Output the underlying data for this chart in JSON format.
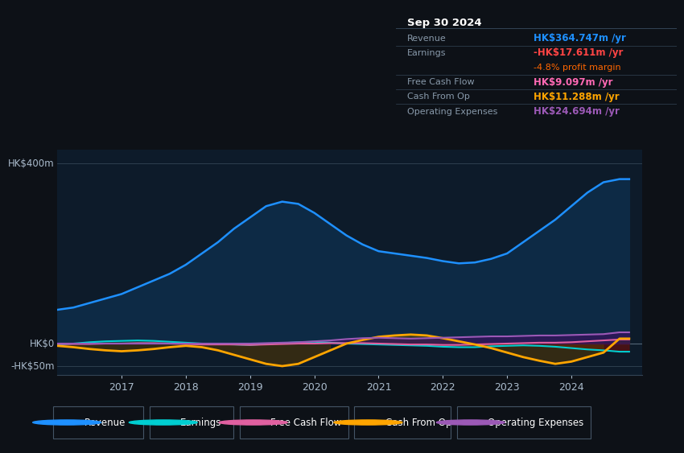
{
  "bg_color": "#0d1117",
  "plot_bg_color": "#0d1b2a",
  "title_box": {
    "date": "Sep 30 2024",
    "rows": [
      {
        "label": "Revenue",
        "value": "HK$364.747m",
        "value_color": "#1e90ff",
        "suffix": " /yr",
        "extra": null,
        "extra_color": null
      },
      {
        "label": "Earnings",
        "value": "-HK$17.611m",
        "value_color": "#ff4444",
        "suffix": " /yr",
        "extra": "-4.8% profit margin",
        "extra_color": "#ff6600"
      },
      {
        "label": "Free Cash Flow",
        "value": "HK$9.097m",
        "value_color": "#ff69b4",
        "suffix": " /yr",
        "extra": null,
        "extra_color": null
      },
      {
        "label": "Cash From Op",
        "value": "HK$11.288m",
        "value_color": "#ffa500",
        "suffix": " /yr",
        "extra": null,
        "extra_color": null
      },
      {
        "label": "Operating Expenses",
        "value": "HK$24.694m",
        "value_color": "#9b59b6",
        "suffix": " /yr",
        "extra": null,
        "extra_color": null
      }
    ]
  },
  "ylabel_top": "HK$400m",
  "ylabel_zero": "HK$0",
  "ylabel_neg": "-HK$50m",
  "x_ticks": [
    "2017",
    "2018",
    "2019",
    "2020",
    "2021",
    "2022",
    "2023",
    "2024"
  ],
  "legend": [
    {
      "label": "Revenue",
      "color": "#1e90ff"
    },
    {
      "label": "Earnings",
      "color": "#00ced1"
    },
    {
      "label": "Free Cash Flow",
      "color": "#e060a0"
    },
    {
      "label": "Cash From Op",
      "color": "#ffa500"
    },
    {
      "label": "Operating Expenses",
      "color": "#9b59b6"
    }
  ],
  "ylim": [
    -70,
    430
  ],
  "xlim": [
    2016.0,
    2025.1
  ],
  "revenue_x": [
    2016.0,
    2016.25,
    2016.5,
    2016.75,
    2017.0,
    2017.25,
    2017.5,
    2017.75,
    2018.0,
    2018.25,
    2018.5,
    2018.75,
    2019.0,
    2019.25,
    2019.5,
    2019.75,
    2020.0,
    2020.25,
    2020.5,
    2020.75,
    2021.0,
    2021.25,
    2021.5,
    2021.75,
    2022.0,
    2022.25,
    2022.5,
    2022.75,
    2023.0,
    2023.25,
    2023.5,
    2023.75,
    2024.0,
    2024.25,
    2024.5,
    2024.75,
    2024.9
  ],
  "revenue_y": [
    75,
    80,
    90,
    100,
    110,
    125,
    140,
    155,
    175,
    200,
    225,
    255,
    280,
    305,
    315,
    310,
    290,
    265,
    240,
    220,
    205,
    200,
    195,
    190,
    183,
    178,
    180,
    188,
    200,
    225,
    250,
    275,
    305,
    335,
    358,
    365,
    365
  ],
  "earnings_x": [
    2016.0,
    2016.25,
    2016.5,
    2016.75,
    2017.0,
    2017.25,
    2017.5,
    2017.75,
    2018.0,
    2018.25,
    2018.5,
    2018.75,
    2019.0,
    2019.25,
    2019.5,
    2019.75,
    2020.0,
    2020.25,
    2020.5,
    2020.75,
    2021.0,
    2021.25,
    2021.5,
    2021.75,
    2022.0,
    2022.25,
    2022.5,
    2022.75,
    2023.0,
    2023.25,
    2023.5,
    2023.75,
    2024.0,
    2024.25,
    2024.5,
    2024.75,
    2024.9
  ],
  "earnings_y": [
    -2,
    0,
    3,
    5,
    6,
    7,
    6,
    4,
    2,
    0,
    -1,
    -2,
    -3,
    -1,
    1,
    3,
    4,
    2,
    0,
    -1,
    -2,
    -3,
    -4,
    -5,
    -7,
    -8,
    -8,
    -6,
    -5,
    -4,
    -5,
    -7,
    -10,
    -13,
    -15,
    -18,
    -18
  ],
  "fcf_x": [
    2016.0,
    2016.25,
    2016.5,
    2016.75,
    2017.0,
    2017.25,
    2017.5,
    2017.75,
    2018.0,
    2018.25,
    2018.5,
    2018.75,
    2019.0,
    2019.25,
    2019.5,
    2019.75,
    2020.0,
    2020.25,
    2020.5,
    2020.75,
    2021.0,
    2021.25,
    2021.5,
    2021.75,
    2022.0,
    2022.25,
    2022.5,
    2022.75,
    2023.0,
    2023.25,
    2023.5,
    2023.75,
    2024.0,
    2024.25,
    2024.5,
    2024.75,
    2024.9
  ],
  "fcf_y": [
    -1,
    -1,
    -1,
    0,
    0,
    1,
    1,
    0,
    -1,
    -2,
    -2,
    -2,
    -3,
    -2,
    -1,
    0,
    0,
    1,
    1,
    1,
    0,
    -1,
    -2,
    -2,
    -3,
    -3,
    -2,
    -1,
    0,
    1,
    2,
    2,
    3,
    5,
    7,
    9,
    9
  ],
  "cfo_x": [
    2016.0,
    2016.25,
    2016.5,
    2016.75,
    2017.0,
    2017.25,
    2017.5,
    2017.75,
    2018.0,
    2018.25,
    2018.5,
    2018.75,
    2019.0,
    2019.25,
    2019.5,
    2019.75,
    2020.0,
    2020.25,
    2020.5,
    2020.75,
    2021.0,
    2021.25,
    2021.5,
    2021.75,
    2022.0,
    2022.25,
    2022.5,
    2022.75,
    2023.0,
    2023.25,
    2023.5,
    2023.75,
    2024.0,
    2024.25,
    2024.5,
    2024.75,
    2024.9
  ],
  "cfo_y": [
    -5,
    -8,
    -12,
    -15,
    -17,
    -15,
    -12,
    -8,
    -5,
    -8,
    -15,
    -25,
    -35,
    -45,
    -50,
    -45,
    -30,
    -15,
    0,
    8,
    15,
    18,
    20,
    18,
    12,
    5,
    -2,
    -10,
    -20,
    -30,
    -38,
    -45,
    -40,
    -30,
    -20,
    11,
    11
  ],
  "opex_x": [
    2016.0,
    2016.25,
    2016.5,
    2016.75,
    2017.0,
    2017.25,
    2017.5,
    2017.75,
    2018.0,
    2018.25,
    2018.5,
    2018.75,
    2019.0,
    2019.25,
    2019.5,
    2019.75,
    2020.0,
    2020.25,
    2020.5,
    2020.75,
    2021.0,
    2021.25,
    2021.5,
    2021.75,
    2022.0,
    2022.25,
    2022.5,
    2022.75,
    2023.0,
    2023.25,
    2023.5,
    2023.75,
    2024.0,
    2024.25,
    2024.5,
    2024.75,
    2024.9
  ],
  "opex_y": [
    0,
    0,
    0,
    0,
    0,
    0,
    0,
    0,
    0,
    0,
    0,
    0,
    0,
    1,
    2,
    3,
    5,
    7,
    10,
    12,
    13,
    12,
    11,
    12,
    13,
    14,
    15,
    16,
    16,
    17,
    18,
    18,
    19,
    20,
    21,
    25,
    25
  ]
}
